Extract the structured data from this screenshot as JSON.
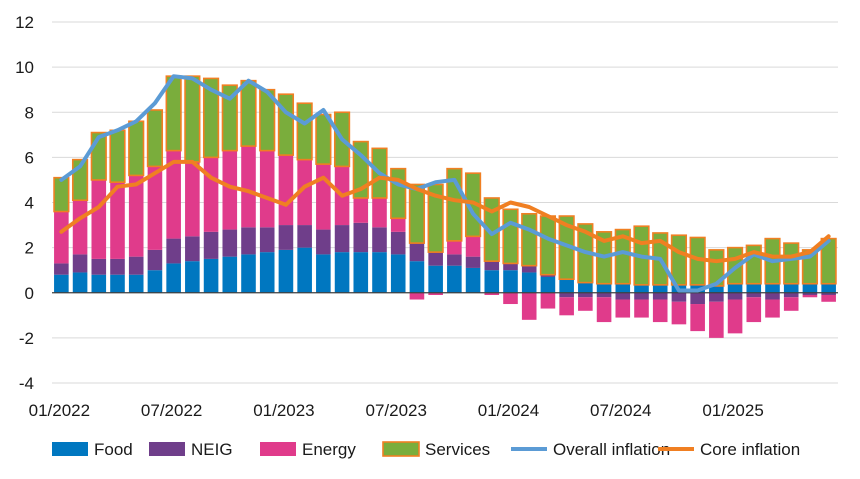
{
  "chart_data": {
    "type": "bar",
    "subtype": "stacked bar with line overlays",
    "x": [
      "01/2022",
      "02/2022",
      "03/2022",
      "04/2022",
      "05/2022",
      "06/2022",
      "07/2022",
      "08/2022",
      "09/2022",
      "10/2022",
      "11/2022",
      "12/2022",
      "01/2023",
      "02/2023",
      "03/2023",
      "04/2023",
      "05/2023",
      "06/2023",
      "07/2023",
      "08/2023",
      "09/2023",
      "10/2023",
      "11/2023",
      "12/2023",
      "01/2024",
      "02/2024",
      "03/2024",
      "04/2024",
      "05/2024",
      "06/2024",
      "07/2024",
      "08/2024",
      "09/2024",
      "10/2024",
      "11/2024",
      "12/2024",
      "01/2025",
      "02/2025",
      "03/2025",
      "04/2025",
      "05/2025",
      "06/2025"
    ],
    "x_tick_labels": [
      "01/2022",
      "07/2022",
      "01/2023",
      "07/2023",
      "01/2024",
      "07/2024",
      "01/2025"
    ],
    "ylim": [
      -4,
      12
    ],
    "y_ticks": [
      -4,
      -2,
      0,
      2,
      4,
      6,
      8,
      10,
      12
    ],
    "grid": "horizontal",
    "legend_position": "bottom",
    "series": [
      {
        "name": "Food",
        "kind": "bar",
        "color": "#0077c0",
        "values": [
          0.8,
          0.9,
          0.8,
          0.8,
          0.8,
          1.0,
          1.3,
          1.4,
          1.5,
          1.6,
          1.7,
          1.8,
          1.9,
          2.0,
          1.7,
          1.8,
          1.8,
          1.8,
          1.7,
          1.4,
          1.2,
          1.2,
          1.1,
          1.0,
          1.0,
          0.9,
          0.7,
          0.6,
          0.45,
          0.4,
          0.4,
          0.35,
          0.35,
          0.35,
          0.35,
          0.3,
          0.4,
          0.4,
          0.4,
          0.4,
          0.4,
          0.4
        ]
      },
      {
        "name": "NEIG",
        "kind": "bar",
        "color": "#6f3e8a",
        "values": [
          0.5,
          0.8,
          0.7,
          0.7,
          0.8,
          0.9,
          1.1,
          1.1,
          1.2,
          1.2,
          1.2,
          1.1,
          1.1,
          1.0,
          1.1,
          1.2,
          1.3,
          1.1,
          1.0,
          0.8,
          0.6,
          0.5,
          0.5,
          0.4,
          0.3,
          0.3,
          0.1,
          -0.2,
          -0.2,
          -0.2,
          -0.3,
          -0.3,
          -0.3,
          -0.4,
          -0.5,
          -0.4,
          -0.3,
          -0.2,
          -0.3,
          -0.2,
          -0.1,
          -0.1
        ]
      },
      {
        "name": "Energy",
        "kind": "bar",
        "color": "#e03b8b",
        "values": [
          2.3,
          2.4,
          3.5,
          3.4,
          3.6,
          3.7,
          3.9,
          3.3,
          3.3,
          3.5,
          3.6,
          3.4,
          3.1,
          2.9,
          2.9,
          2.6,
          1.1,
          1.3,
          0.6,
          -0.3,
          -0.1,
          0.6,
          0.9,
          -0.1,
          -0.5,
          -1.2,
          -0.7,
          -0.8,
          -0.6,
          -1.1,
          -0.8,
          -0.8,
          -1.0,
          -1.0,
          -1.2,
          -1.6,
          -1.5,
          -1.1,
          -0.8,
          -0.6,
          -0.1,
          -0.3
        ]
      },
      {
        "name": "Services",
        "kind": "bar",
        "color": "#7aad3c",
        "border_color": "#f07f22",
        "values": [
          1.5,
          1.8,
          2.1,
          2.3,
          2.4,
          2.5,
          3.3,
          3.8,
          3.5,
          2.9,
          2.9,
          2.7,
          2.7,
          2.5,
          2.2,
          2.4,
          2.5,
          2.2,
          2.2,
          2.6,
          3.0,
          3.2,
          2.8,
          2.8,
          2.4,
          2.3,
          2.6,
          2.8,
          2.6,
          2.3,
          2.4,
          2.6,
          2.3,
          2.2,
          2.1,
          1.6,
          1.6,
          1.7,
          2.0,
          1.8,
          1.5,
          2.0
        ]
      },
      {
        "name": "Overall inflation",
        "kind": "line",
        "color": "#5b9bd5",
        "values": [
          5.0,
          5.6,
          6.9,
          7.2,
          7.6,
          8.4,
          9.6,
          9.5,
          9.0,
          8.6,
          9.4,
          8.9,
          8.0,
          7.5,
          8.1,
          6.8,
          6.1,
          5.3,
          4.8,
          4.6,
          4.9,
          5.0,
          3.5,
          2.6,
          3.1,
          2.8,
          2.4,
          2.1,
          1.8,
          1.6,
          1.8,
          1.6,
          1.5,
          0.1,
          0.1,
          0.4,
          1.1,
          1.7,
          1.4,
          1.5,
          1.6,
          2.3
        ]
      },
      {
        "name": "Core inflation",
        "kind": "line",
        "color": "#f07f22",
        "values": [
          2.7,
          3.3,
          3.8,
          4.7,
          4.8,
          5.3,
          5.8,
          5.8,
          5.1,
          4.7,
          4.5,
          4.2,
          3.9,
          4.7,
          5.1,
          4.3,
          4.6,
          5.1,
          5.0,
          4.6,
          4.3,
          4.1,
          4.0,
          3.6,
          4.0,
          3.8,
          3.4,
          3.0,
          2.7,
          2.3,
          2.5,
          2.2,
          2.3,
          1.8,
          1.5,
          1.4,
          1.5,
          1.8,
          1.6,
          1.6,
          1.8,
          2.5
        ]
      }
    ]
  }
}
